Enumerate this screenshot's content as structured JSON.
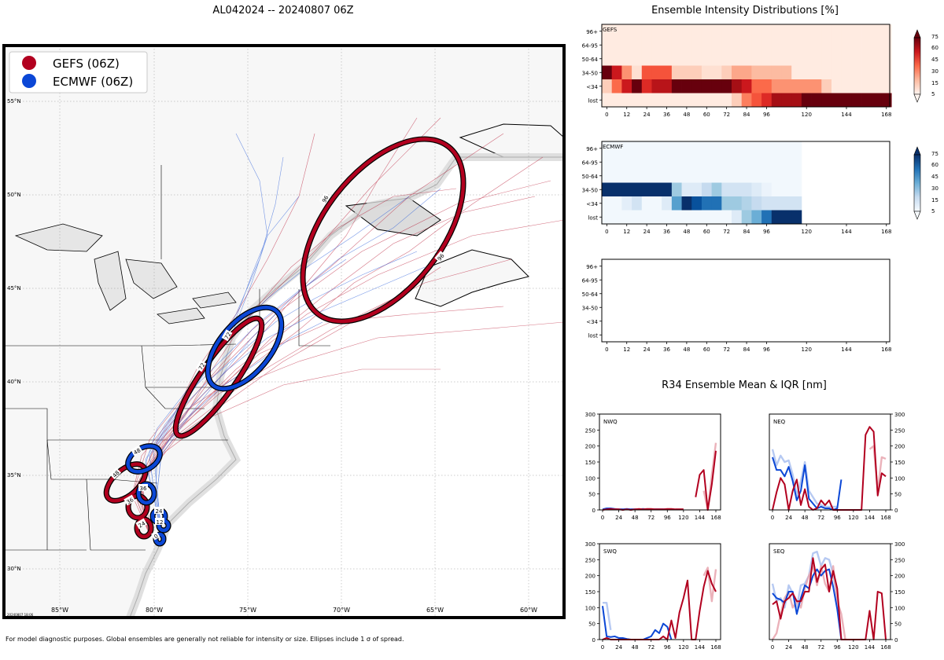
{
  "figure": {
    "map_title": "AL042024 -- 20240807 06Z",
    "footnote": "For model diagnostic purposes. Global ensembles are generally not reliable for intensity or size. Ellipses include 1 σ of spread.",
    "stamp": "20240807 18:06"
  },
  "map": {
    "legend": [
      {
        "label": "GEFS (06Z)",
        "color": "#b2001f"
      },
      {
        "label": "ECMWF (06Z)",
        "color": "#0b47d6"
      }
    ],
    "lon_labels": [
      "85°W",
      "80°W",
      "75°W",
      "70°W",
      "65°W",
      "60°W"
    ],
    "lat_labels": [
      "55°N",
      "50°N",
      "45°N",
      "40°N",
      "35°N",
      "30°N"
    ],
    "gefs_color": "#b2001f",
    "ecmwf_color": "#0b47d6",
    "gefs_ellipse_labels": [
      "0",
      "12",
      "24",
      "36",
      "48",
      "72",
      "72",
      "96",
      "96"
    ],
    "ecmwf_ellipse_labels": [
      "0",
      "12",
      "24",
      "36",
      "48",
      "72"
    ]
  },
  "intensity": {
    "title": "Ensemble Intensity Distributions [%]",
    "row_labels": [
      "96+",
      "64-95",
      "50-64",
      "34-50",
      "<34",
      "lost"
    ],
    "x_ticks": [
      "0",
      "12",
      "24",
      "36",
      "48",
      "60",
      "72",
      "84",
      "96",
      "120",
      "144",
      "168"
    ],
    "panel_labels": [
      "GEFS",
      "ECMWF",
      ""
    ],
    "cbar_ticks": [
      "75",
      "60",
      "45",
      "30",
      "15",
      "5"
    ]
  },
  "r34": {
    "title": "R34 Ensemble Mean & IQR [nm]",
    "quadrants": [
      "NWQ",
      "NEQ",
      "SWQ",
      "SEQ"
    ],
    "y_ticks": [
      "300",
      "250",
      "200",
      "150",
      "100",
      "50",
      "0"
    ],
    "x_ticks": [
      "0",
      "24",
      "48",
      "72",
      "96",
      "120",
      "144",
      "168"
    ]
  },
  "chart_data": [
    {
      "type": "heatmap",
      "title": "Ensemble Intensity Distributions [%] - GEFS",
      "x": [
        0,
        6,
        12,
        18,
        24,
        30,
        36,
        42,
        48,
        54,
        60,
        66,
        72,
        78,
        84,
        90,
        96,
        102,
        108,
        114,
        120,
        126,
        132,
        138,
        144,
        150,
        156,
        162,
        168
      ],
      "y": [
        "96+",
        "64-95",
        "50-64",
        "34-50",
        "<34",
        "lost"
      ],
      "values": [
        [
          5,
          5,
          5,
          5,
          5,
          5,
          5,
          5,
          5,
          5,
          5,
          5,
          5,
          5,
          5,
          5,
          5,
          5,
          5,
          5,
          5,
          5,
          5,
          5,
          5,
          5,
          5,
          5,
          5
        ],
        [
          5,
          5,
          5,
          5,
          5,
          5,
          5,
          5,
          5,
          5,
          5,
          5,
          5,
          5,
          5,
          5,
          5,
          5,
          5,
          5,
          5,
          5,
          5,
          5,
          5,
          5,
          5,
          5,
          5
        ],
        [
          5,
          5,
          5,
          5,
          5,
          5,
          5,
          5,
          5,
          5,
          5,
          5,
          5,
          5,
          5,
          5,
          5,
          5,
          5,
          5,
          5,
          5,
          5,
          5,
          5,
          5,
          5,
          5,
          5
        ],
        [
          80,
          60,
          30,
          10,
          45,
          45,
          45,
          15,
          15,
          15,
          10,
          10,
          15,
          25,
          25,
          20,
          20,
          20,
          20,
          5,
          5,
          5,
          5,
          5,
          5,
          5,
          5,
          5,
          5
        ],
        [
          15,
          40,
          60,
          90,
          55,
          65,
          65,
          90,
          90,
          90,
          90,
          90,
          90,
          70,
          60,
          40,
          40,
          30,
          30,
          30,
          30,
          30,
          15,
          5,
          5,
          5,
          5,
          5,
          5
        ],
        [
          5,
          5,
          5,
          5,
          5,
          5,
          5,
          5,
          5,
          5,
          5,
          5,
          5,
          15,
          35,
          45,
          55,
          70,
          70,
          70,
          80,
          80,
          80,
          80,
          80,
          80,
          80,
          80,
          80
        ]
      ],
      "colorbar": [
        5,
        15,
        30,
        45,
        60,
        75
      ],
      "ylabel": "",
      "xlabel": ""
    },
    {
      "type": "heatmap",
      "title": "Ensemble Intensity Distributions [%] - ECMWF",
      "x": [
        0,
        6,
        12,
        18,
        24,
        30,
        36,
        42,
        48,
        54,
        60,
        66,
        72,
        78,
        84,
        90,
        96,
        102,
        108,
        114
      ],
      "y": [
        "96+",
        "64-95",
        "50-64",
        "34-50",
        "<34",
        "lost"
      ],
      "values": [
        [
          2,
          2,
          2,
          2,
          2,
          2,
          2,
          2,
          2,
          2,
          2,
          2,
          2,
          2,
          2,
          2,
          2,
          2,
          2,
          2
        ],
        [
          2,
          2,
          2,
          2,
          2,
          2,
          2,
          2,
          2,
          2,
          2,
          2,
          2,
          2,
          2,
          2,
          2,
          2,
          2,
          2
        ],
        [
          2,
          2,
          2,
          2,
          2,
          2,
          2,
          2,
          2,
          2,
          2,
          2,
          2,
          2,
          2,
          2,
          2,
          2,
          2,
          2
        ],
        [
          90,
          90,
          90,
          90,
          90,
          90,
          90,
          30,
          10,
          10,
          20,
          30,
          15,
          15,
          15,
          10,
          5,
          2,
          2,
          2
        ],
        [
          2,
          2,
          8,
          15,
          2,
          2,
          10,
          45,
          80,
          70,
          60,
          60,
          30,
          30,
          25,
          20,
          15,
          15,
          15,
          15
        ],
        [
          2,
          2,
          2,
          2,
          2,
          2,
          2,
          2,
          2,
          2,
          2,
          2,
          2,
          10,
          30,
          40,
          60,
          80,
          80,
          80
        ]
      ],
      "colorbar": [
        5,
        15,
        30,
        45,
        60,
        75
      ],
      "ylabel": "",
      "xlabel": ""
    },
    {
      "type": "line",
      "title": "R34 Ensemble Mean & IQR [nm] - NWQ",
      "ylim": [
        0,
        300
      ],
      "xlim": [
        0,
        168
      ],
      "series": [
        {
          "name": "ECMWF mean",
          "color": "#0b47d6",
          "x": [
            0,
            6,
            12,
            18,
            24,
            30,
            36,
            42,
            48,
            54,
            60,
            66,
            72,
            78,
            84,
            90,
            96,
            102
          ],
          "values": [
            2,
            5,
            5,
            3,
            2,
            2,
            3,
            2,
            2,
            2,
            3,
            2,
            2,
            2,
            2,
            2,
            2,
            2
          ]
        },
        {
          "name": "GEFS mean",
          "color": "#b2001f",
          "x": [
            0,
            6,
            12,
            18,
            24,
            30,
            36,
            42,
            48,
            54,
            60,
            66,
            72,
            78,
            84,
            90,
            96,
            102,
            108,
            114,
            120
          ],
          "values": [
            0,
            2,
            3,
            2,
            2,
            0,
            2,
            0,
            2,
            3,
            2,
            3,
            3,
            2,
            2,
            2,
            3,
            3,
            2,
            2,
            2
          ]
        },
        {
          "name": "GEFS mean (late)",
          "color": "#b2001f",
          "x": [
            138,
            144,
            150,
            156,
            162,
            168
          ],
          "values": [
            40,
            110,
            125,
            0,
            80,
            185
          ]
        },
        {
          "name": "GEFS IQR",
          "color": "#e8a4ae",
          "x": [
            150,
            156,
            162,
            168
          ],
          "values": [
            60,
            0,
            110,
            210
          ]
        }
      ]
    },
    {
      "type": "line",
      "title": "R34 Ensemble Mean & IQR [nm] - NEQ",
      "ylim": [
        0,
        300
      ],
      "xlim": [
        0,
        168
      ],
      "series": [
        {
          "name": "ECMWF mean",
          "color": "#0b47d6",
          "x": [
            0,
            6,
            12,
            18,
            24,
            30,
            36,
            42,
            48,
            54,
            60,
            66,
            72,
            78,
            84,
            90,
            96,
            102
          ],
          "values": [
            165,
            125,
            125,
            105,
            135,
            90,
            30,
            60,
            140,
            35,
            20,
            5,
            10,
            5,
            5,
            0,
            5,
            95
          ]
        },
        {
          "name": "GEFS mean",
          "color": "#b2001f",
          "x": [
            0,
            6,
            12,
            18,
            24,
            30,
            36,
            42,
            48,
            54,
            60,
            66,
            72,
            78,
            84,
            90,
            96,
            102,
            108,
            114,
            120,
            126,
            132,
            138,
            144,
            150,
            156,
            162,
            168
          ],
          "values": [
            0,
            55,
            100,
            80,
            0,
            60,
            95,
            15,
            65,
            10,
            0,
            5,
            30,
            15,
            30,
            0,
            0,
            0,
            0,
            0,
            0,
            0,
            0,
            235,
            260,
            245,
            45,
            115,
            105
          ]
        },
        {
          "name": "ECMWF IQR",
          "color": "#a9bff0",
          "x": [
            0,
            6,
            12,
            18,
            24,
            30,
            36,
            42,
            48,
            54,
            60,
            66,
            72,
            78,
            84,
            90,
            96
          ],
          "values": [
            190,
            140,
            170,
            150,
            155,
            110,
            45,
            90,
            150,
            60,
            40,
            20,
            15,
            10,
            10,
            10,
            10
          ]
        },
        {
          "name": "GEFS IQR",
          "color": "#e8a4ae",
          "x": [
            144,
            150,
            156,
            162,
            168
          ],
          "values": [
            190,
            200,
            60,
            165,
            160
          ]
        }
      ]
    },
    {
      "type": "line",
      "title": "R34 Ensemble Mean & IQR [nm] - SWQ",
      "ylim": [
        0,
        300
      ],
      "xlim": [
        0,
        168
      ],
      "series": [
        {
          "name": "ECMWF mean",
          "color": "#0b47d6",
          "x": [
            0,
            6,
            12,
            18,
            24,
            30,
            36,
            42,
            48,
            54,
            60,
            66,
            72,
            78,
            84,
            90,
            96,
            102
          ],
          "values": [
            105,
            10,
            8,
            10,
            5,
            5,
            2,
            0,
            0,
            0,
            0,
            5,
            10,
            30,
            20,
            50,
            40,
            0
          ]
        },
        {
          "name": "GEFS mean",
          "color": "#b2001f",
          "x": [
            0,
            6,
            12,
            18,
            24,
            30,
            36,
            42,
            48,
            54,
            60,
            66,
            72,
            78,
            84,
            90,
            96,
            102,
            108,
            114,
            120,
            126,
            132,
            138,
            144,
            150,
            156,
            162,
            168
          ],
          "values": [
            0,
            5,
            0,
            0,
            0,
            0,
            0,
            0,
            0,
            0,
            0,
            0,
            0,
            0,
            0,
            10,
            0,
            60,
            5,
            85,
            130,
            185,
            0,
            0,
            90,
            165,
            215,
            175,
            150
          ]
        },
        {
          "name": "ECMWF IQR",
          "color": "#a9bff0",
          "x": [
            0,
            6,
            12
          ],
          "values": [
            115,
            115,
            30
          ]
        },
        {
          "name": "GEFS IQR",
          "color": "#e8a4ae",
          "x": [
            150,
            156,
            162,
            168
          ],
          "values": [
            200,
            225,
            120,
            220
          ]
        }
      ]
    },
    {
      "type": "line",
      "title": "R34 Ensemble Mean & IQR [nm] - SEQ",
      "ylim": [
        0,
        300
      ],
      "xlim": [
        0,
        168
      ],
      "series": [
        {
          "name": "ECMWF mean",
          "color": "#0b47d6",
          "x": [
            0,
            6,
            12,
            18,
            24,
            30,
            36,
            42,
            48,
            54,
            60,
            66,
            72,
            78,
            84,
            90,
            96,
            102
          ],
          "values": [
            145,
            130,
            125,
            115,
            150,
            150,
            80,
            130,
            170,
            160,
            200,
            220,
            200,
            215,
            220,
            165,
            95,
            0
          ]
        },
        {
          "name": "GEFS mean",
          "color": "#b2001f",
          "x": [
            0,
            6,
            12,
            18,
            24,
            30,
            36,
            42,
            48,
            54,
            60,
            66,
            72,
            78,
            84,
            90,
            96,
            102,
            108,
            114,
            120,
            126,
            132,
            138,
            144,
            150,
            156,
            162,
            168
          ],
          "values": [
            110,
            120,
            65,
            120,
            130,
            145,
            120,
            120,
            150,
            150,
            255,
            180,
            220,
            235,
            150,
            215,
            160,
            0,
            0,
            0,
            0,
            0,
            0,
            0,
            90,
            0,
            150,
            145,
            0
          ]
        },
        {
          "name": "ECMWF IQR",
          "color": "#a9bff0",
          "x": [
            0,
            6,
            12,
            18,
            24,
            30,
            36,
            42,
            48,
            54,
            60,
            66,
            72,
            78,
            84,
            90,
            96,
            102
          ],
          "values": [
            175,
            120,
            130,
            100,
            170,
            145,
            100,
            170,
            175,
            200,
            270,
            275,
            230,
            255,
            250,
            205,
            130,
            0
          ]
        },
        {
          "name": "GEFS IQR",
          "color": "#e8a4ae",
          "x": [
            0,
            6,
            12,
            18,
            24,
            30,
            36,
            42,
            48,
            54,
            60,
            66,
            72,
            78,
            84,
            90,
            96,
            102,
            108
          ],
          "values": [
            0,
            20,
            80,
            130,
            150,
            100,
            120,
            100,
            160,
            200,
            230,
            170,
            230,
            175,
            150,
            230,
            120,
            80,
            0
          ]
        }
      ]
    }
  ]
}
